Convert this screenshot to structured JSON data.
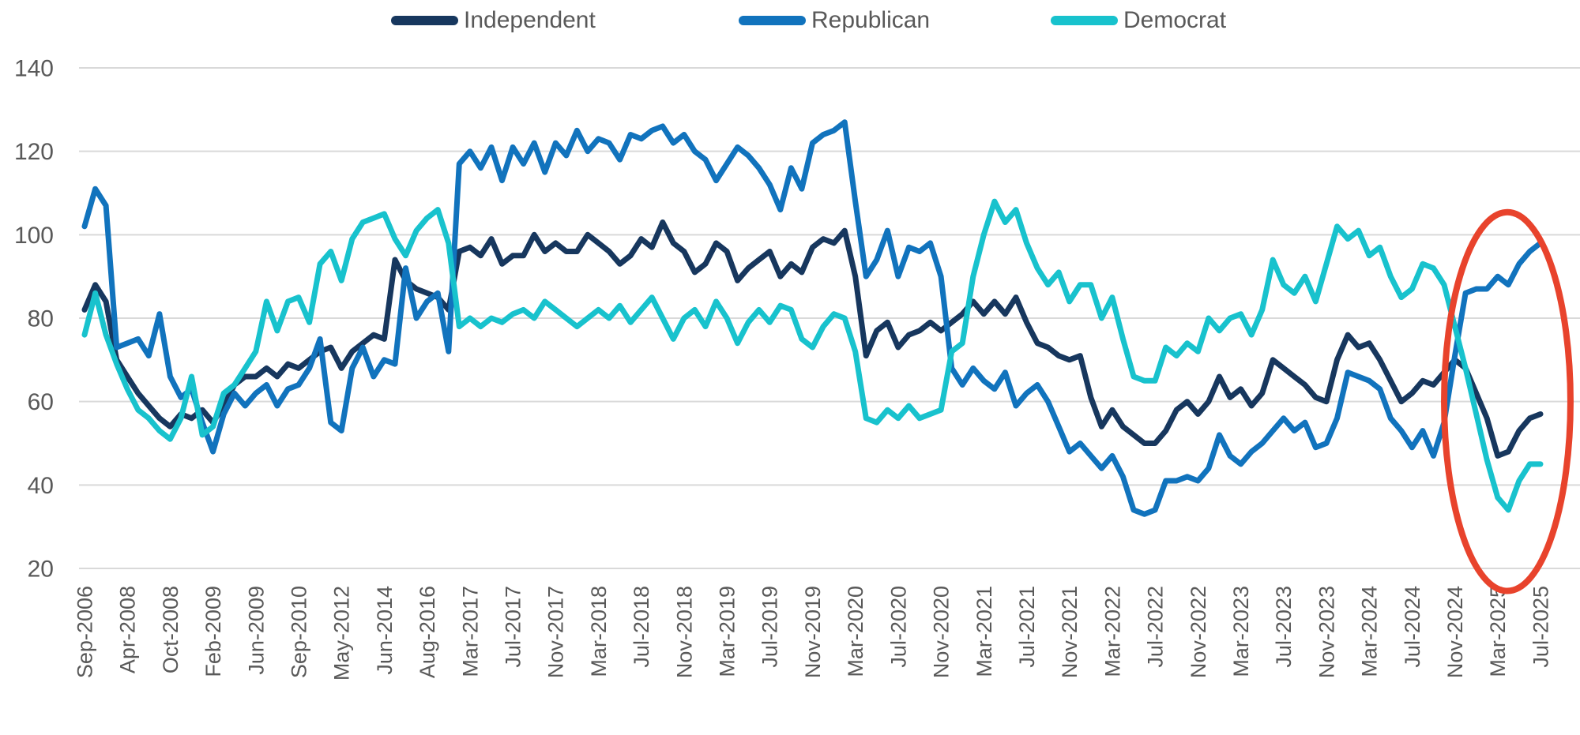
{
  "chart_data": {
    "type": "line",
    "title": "",
    "xlabel": "",
    "ylabel": "",
    "ylim": [
      20,
      140
    ],
    "y_ticks": [
      20,
      40,
      60,
      80,
      100,
      120,
      140
    ],
    "grid": true,
    "legend_position": "top-center",
    "x_tick_every": 4,
    "x_tick_labels": [
      "Sep-2006",
      "Apr-2008",
      "Oct-2008",
      "Feb-2009",
      "Jun-2009",
      "Sep-2010",
      "May-2012",
      "Jun-2014",
      "Aug-2016",
      "Mar-2017",
      "Jul-2017",
      "Nov-2017",
      "Mar-2018",
      "Jul-2018",
      "Nov-2018",
      "Mar-2019",
      "Jul-2019",
      "Nov-2019",
      "Mar-2020",
      "Jul-2020",
      "Nov-2020",
      "Mar-2021",
      "Jul-2021",
      "Nov-2021",
      "Mar-2022",
      "Jul-2022",
      "Nov-2022",
      "Mar-2023",
      "Jul-2023",
      "Nov-2023",
      "Mar-2024",
      "Jul-2024",
      "Nov-2024",
      "Mar-2025",
      "Jul-2025"
    ],
    "series": [
      {
        "name": "Independent",
        "color": "#17375E",
        "values": [
          82,
          88,
          84,
          70,
          66,
          62,
          59,
          56,
          54,
          57,
          56,
          58,
          55,
          59,
          64,
          66,
          66,
          68,
          66,
          69,
          68,
          70,
          72,
          73,
          68,
          72,
          74,
          76,
          75,
          94,
          89,
          87,
          86,
          85,
          82,
          96,
          97,
          95,
          99,
          93,
          95,
          95,
          100,
          96,
          98,
          96,
          96,
          100,
          98,
          96,
          93,
          95,
          99,
          97,
          103,
          98,
          96,
          91,
          93,
          98,
          96,
          89,
          92,
          94,
          96,
          90,
          93,
          91,
          97,
          99,
          98,
          101,
          90,
          71,
          77,
          79,
          73,
          76,
          77,
          79,
          77,
          79,
          81,
          84,
          81,
          84,
          81,
          85,
          79,
          74,
          73,
          71,
          70,
          71,
          61,
          54,
          58,
          54,
          52,
          50,
          50,
          53,
          58,
          60,
          57,
          60,
          66,
          61,
          63,
          59,
          62,
          70,
          68,
          66,
          64,
          61,
          60,
          70,
          76,
          73,
          74,
          70,
          65,
          60,
          62,
          65,
          64,
          67,
          70,
          68,
          62,
          56,
          47,
          48,
          53,
          56,
          57
        ]
      },
      {
        "name": "Republican",
        "color": "#1173BD",
        "values": [
          102,
          111,
          107,
          73,
          74,
          75,
          71,
          81,
          66,
          61,
          63,
          55,
          48,
          57,
          62,
          59,
          62,
          64,
          59,
          63,
          64,
          68,
          75,
          55,
          53,
          68,
          73,
          66,
          70,
          69,
          92,
          80,
          84,
          86,
          72,
          117,
          120,
          116,
          121,
          113,
          121,
          117,
          122,
          115,
          122,
          119,
          125,
          120,
          123,
          122,
          118,
          124,
          123,
          125,
          126,
          122,
          124,
          120,
          118,
          113,
          117,
          121,
          119,
          116,
          112,
          106,
          116,
          111,
          122,
          124,
          125,
          127,
          108,
          90,
          94,
          101,
          90,
          97,
          96,
          98,
          90,
          68,
          64,
          68,
          65,
          63,
          67,
          59,
          62,
          64,
          60,
          54,
          48,
          50,
          47,
          44,
          47,
          42,
          34,
          33,
          34,
          41,
          41,
          42,
          41,
          44,
          52,
          47,
          45,
          48,
          50,
          53,
          56,
          53,
          55,
          49,
          50,
          56,
          67,
          66,
          65,
          63,
          56,
          53,
          49,
          53,
          47,
          55,
          71,
          86,
          87,
          87,
          90,
          88,
          93,
          96,
          98
        ]
      },
      {
        "name": "Democrat",
        "color": "#18C2CD",
        "values": [
          76,
          86,
          76,
          69,
          63,
          58,
          56,
          53,
          51,
          56,
          66,
          52,
          54,
          62,
          64,
          68,
          72,
          84,
          77,
          84,
          85,
          79,
          93,
          96,
          89,
          99,
          103,
          104,
          105,
          99,
          95,
          101,
          104,
          106,
          98,
          78,
          80,
          78,
          80,
          79,
          81,
          82,
          80,
          84,
          82,
          80,
          78,
          80,
          82,
          80,
          83,
          79,
          82,
          85,
          80,
          75,
          80,
          82,
          78,
          84,
          80,
          74,
          79,
          82,
          79,
          83,
          82,
          75,
          73,
          78,
          81,
          80,
          72,
          56,
          55,
          58,
          56,
          59,
          56,
          57,
          58,
          72,
          74,
          90,
          100,
          108,
          103,
          106,
          98,
          92,
          88,
          91,
          84,
          88,
          88,
          80,
          85,
          75,
          66,
          65,
          65,
          73,
          71,
          74,
          72,
          80,
          77,
          80,
          81,
          76,
          82,
          94,
          88,
          86,
          90,
          84,
          93,
          102,
          99,
          101,
          95,
          97,
          90,
          85,
          87,
          93,
          92,
          88,
          78,
          68,
          57,
          46,
          37,
          34,
          41,
          45,
          45
        ]
      }
    ],
    "annotation": {
      "type": "ellipse",
      "color": "#E8432C",
      "stroke_width": 8,
      "center_index": 132.9,
      "center_value": 60,
      "radius_index": 5.9,
      "radius_value": 45.4
    },
    "styling": {
      "gridline_color": "#D9D9D9",
      "tick_label_color": "#595959",
      "line_width": 7
    }
  }
}
